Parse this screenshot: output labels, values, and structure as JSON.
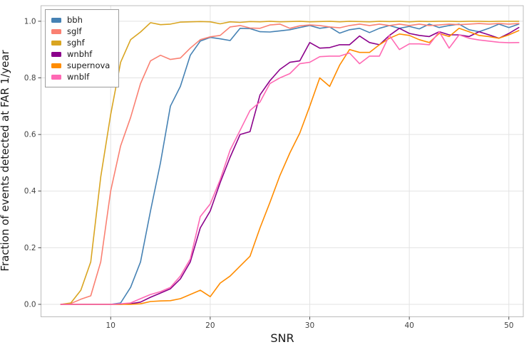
{
  "chart_data": {
    "type": "line",
    "title": "",
    "xlabel": "SNR",
    "ylabel": "Fraction of events detected at FAR 1/year",
    "xlim": [
      3.0,
      51.45
    ],
    "ylim": [
      -0.044,
      1.055
    ],
    "xticks": [
      10,
      20,
      30,
      40,
      50
    ],
    "xtick_labels": [
      "10",
      "20",
      "30",
      "40",
      "50"
    ],
    "yticks": [
      0.0,
      0.2,
      0.4,
      0.6,
      0.8,
      1.0
    ],
    "ytick_labels": [
      "0.0",
      "0.2",
      "0.4",
      "0.6",
      "0.8",
      "1.0"
    ],
    "grid": true,
    "legend_position": "upper-left",
    "grid_color": "#e3e3e3",
    "panel_border_color": "#bcbcbc",
    "tick_color": "#333333",
    "tick_label_color": "#424242",
    "x": [
      5,
      6,
      7,
      8,
      9,
      10,
      11,
      12,
      13,
      14,
      15,
      16,
      17,
      18,
      19,
      20,
      21,
      22,
      23,
      24,
      25,
      26,
      27,
      28,
      29,
      30,
      31,
      32,
      33,
      34,
      35,
      36,
      37,
      38,
      39,
      40,
      41,
      42,
      43,
      44,
      45,
      46,
      47,
      48,
      49,
      50,
      51
    ],
    "series": [
      {
        "name": "bbh",
        "color": "#4682b4",
        "values": [
          0,
          0,
          0,
          0,
          0,
          0,
          0.005,
          0.06,
          0.15,
          0.33,
          0.5,
          0.7,
          0.77,
          0.88,
          0.93,
          0.943,
          0.938,
          0.932,
          0.975,
          0.974,
          0.963,
          0.962,
          0.966,
          0.97,
          0.978,
          0.985,
          0.975,
          0.98,
          0.958,
          0.97,
          0.975,
          0.96,
          0.975,
          0.985,
          0.975,
          0.982,
          0.973,
          0.99,
          0.978,
          0.985,
          0.99,
          0.97,
          0.963,
          0.975,
          0.99,
          0.978,
          0.99
        ]
      },
      {
        "name": "sglf",
        "color": "#fa8072",
        "values": [
          0,
          0.003,
          0.018,
          0.03,
          0.15,
          0.4,
          0.56,
          0.66,
          0.78,
          0.86,
          0.88,
          0.865,
          0.87,
          0.905,
          0.935,
          0.945,
          0.95,
          0.98,
          0.985,
          0.976,
          0.975,
          0.987,
          0.99,
          0.975,
          0.984,
          0.987,
          0.985,
          0.98,
          0.977,
          0.985,
          0.99,
          0.985,
          0.99,
          0.985,
          0.99,
          0.985,
          0.99,
          0.985,
          0.987,
          0.99,
          0.988,
          0.99,
          0.992,
          0.99,
          0.992,
          0.99,
          0.992
        ]
      },
      {
        "name": "sghf",
        "color": "#d9a521",
        "values": [
          0,
          0.005,
          0.05,
          0.15,
          0.45,
          0.67,
          0.855,
          0.935,
          0.962,
          0.995,
          0.988,
          0.99,
          0.997,
          0.998,
          0.999,
          0.998,
          0.991,
          0.998,
          0.996,
          0.999,
          0.998,
          1.0,
          0.998,
          0.999,
          1.0,
          0.998,
          0.999,
          1.0,
          0.998,
          1.0,
          0.999,
          0.998,
          1.0,
          0.999,
          1.0,
          0.998,
          1.0,
          0.999,
          1.0,
          1.0,
          0.999,
          1.0,
          1.0,
          0.999,
          1.0,
          1.0,
          1.0
        ]
      },
      {
        "name": "wnbhf",
        "color": "#8b008b",
        "values": [
          0,
          0,
          0,
          0,
          0,
          0,
          0,
          0.002,
          0.008,
          0.025,
          0.04,
          0.055,
          0.09,
          0.15,
          0.27,
          0.33,
          0.43,
          0.52,
          0.6,
          0.61,
          0.74,
          0.79,
          0.83,
          0.855,
          0.86,
          0.925,
          0.905,
          0.907,
          0.917,
          0.917,
          0.948,
          0.925,
          0.917,
          0.95,
          0.975,
          0.957,
          0.95,
          0.946,
          0.963,
          0.952,
          0.952,
          0.946,
          0.963,
          0.952,
          0.94,
          0.957,
          0.978
        ]
      },
      {
        "name": "supernova",
        "color": "#ff8c00",
        "values": [
          0,
          0,
          0,
          0,
          0,
          0,
          0,
          0,
          0.002,
          0.01,
          0.012,
          0.013,
          0.02,
          0.035,
          0.05,
          0.027,
          0.075,
          0.1,
          0.135,
          0.17,
          0.27,
          0.36,
          0.455,
          0.535,
          0.605,
          0.7,
          0.8,
          0.77,
          0.845,
          0.9,
          0.89,
          0.89,
          0.917,
          0.94,
          0.955,
          0.95,
          0.935,
          0.925,
          0.957,
          0.946,
          0.975,
          0.963,
          0.95,
          0.946,
          0.94,
          0.952,
          0.967
        ]
      },
      {
        "name": "wnblf",
        "color": "#ff69b4",
        "values": [
          0,
          0,
          0,
          0,
          0,
          0,
          0.002,
          0.005,
          0.02,
          0.035,
          0.045,
          0.06,
          0.1,
          0.16,
          0.31,
          0.355,
          0.44,
          0.545,
          0.615,
          0.685,
          0.715,
          0.78,
          0.8,
          0.815,
          0.85,
          0.855,
          0.875,
          0.877,
          0.877,
          0.888,
          0.85,
          0.877,
          0.877,
          0.95,
          0.9,
          0.92,
          0.92,
          0.917,
          0.963,
          0.905,
          0.952,
          0.94,
          0.934,
          0.93,
          0.926,
          0.924,
          0.925
        ]
      }
    ]
  }
}
